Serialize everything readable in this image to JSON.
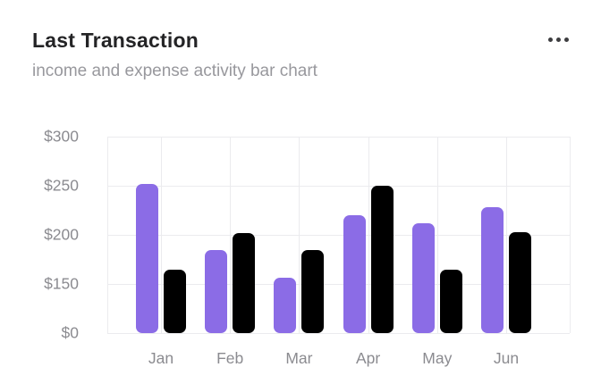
{
  "header": {
    "title": "Last Transaction",
    "subtitle": "income and expense activity bar chart",
    "menu_icon": "ellipsis-horizontal-icon"
  },
  "colors": {
    "income_bar": "#8b6ce6",
    "expense_bar": "#000000",
    "grid": "#ebebee",
    "axis_text": "#8b8b90",
    "title_text": "#242426",
    "subtitle_text": "#98989d",
    "background": "#ffffff",
    "menu_dots": "#3d3d40"
  },
  "chart_data": {
    "type": "bar",
    "title": "Last Transaction",
    "subtitle": "income and expense activity bar chart",
    "categories": [
      "Jan",
      "Feb",
      "Mar",
      "Apr",
      "May",
      "Jun"
    ],
    "series": [
      {
        "name": "income",
        "color": "#8b6ce6",
        "values": [
          252,
          185,
          156,
          220,
          212,
          228
        ]
      },
      {
        "name": "expense",
        "color": "#000000",
        "values": [
          165,
          202,
          185,
          250,
          165,
          203
        ]
      }
    ],
    "y_ticks": [
      "$300",
      "$250",
      "$200",
      "$150",
      "$0"
    ],
    "y_tick_values": [
      300,
      250,
      200,
      150,
      0
    ],
    "ylim": [
      0,
      300
    ],
    "y_scale_note": "non-linear axis: ticks 0,150,200,250,300 are evenly spaced",
    "grid": true,
    "legend": "none",
    "xlabel": "",
    "ylabel": ""
  }
}
